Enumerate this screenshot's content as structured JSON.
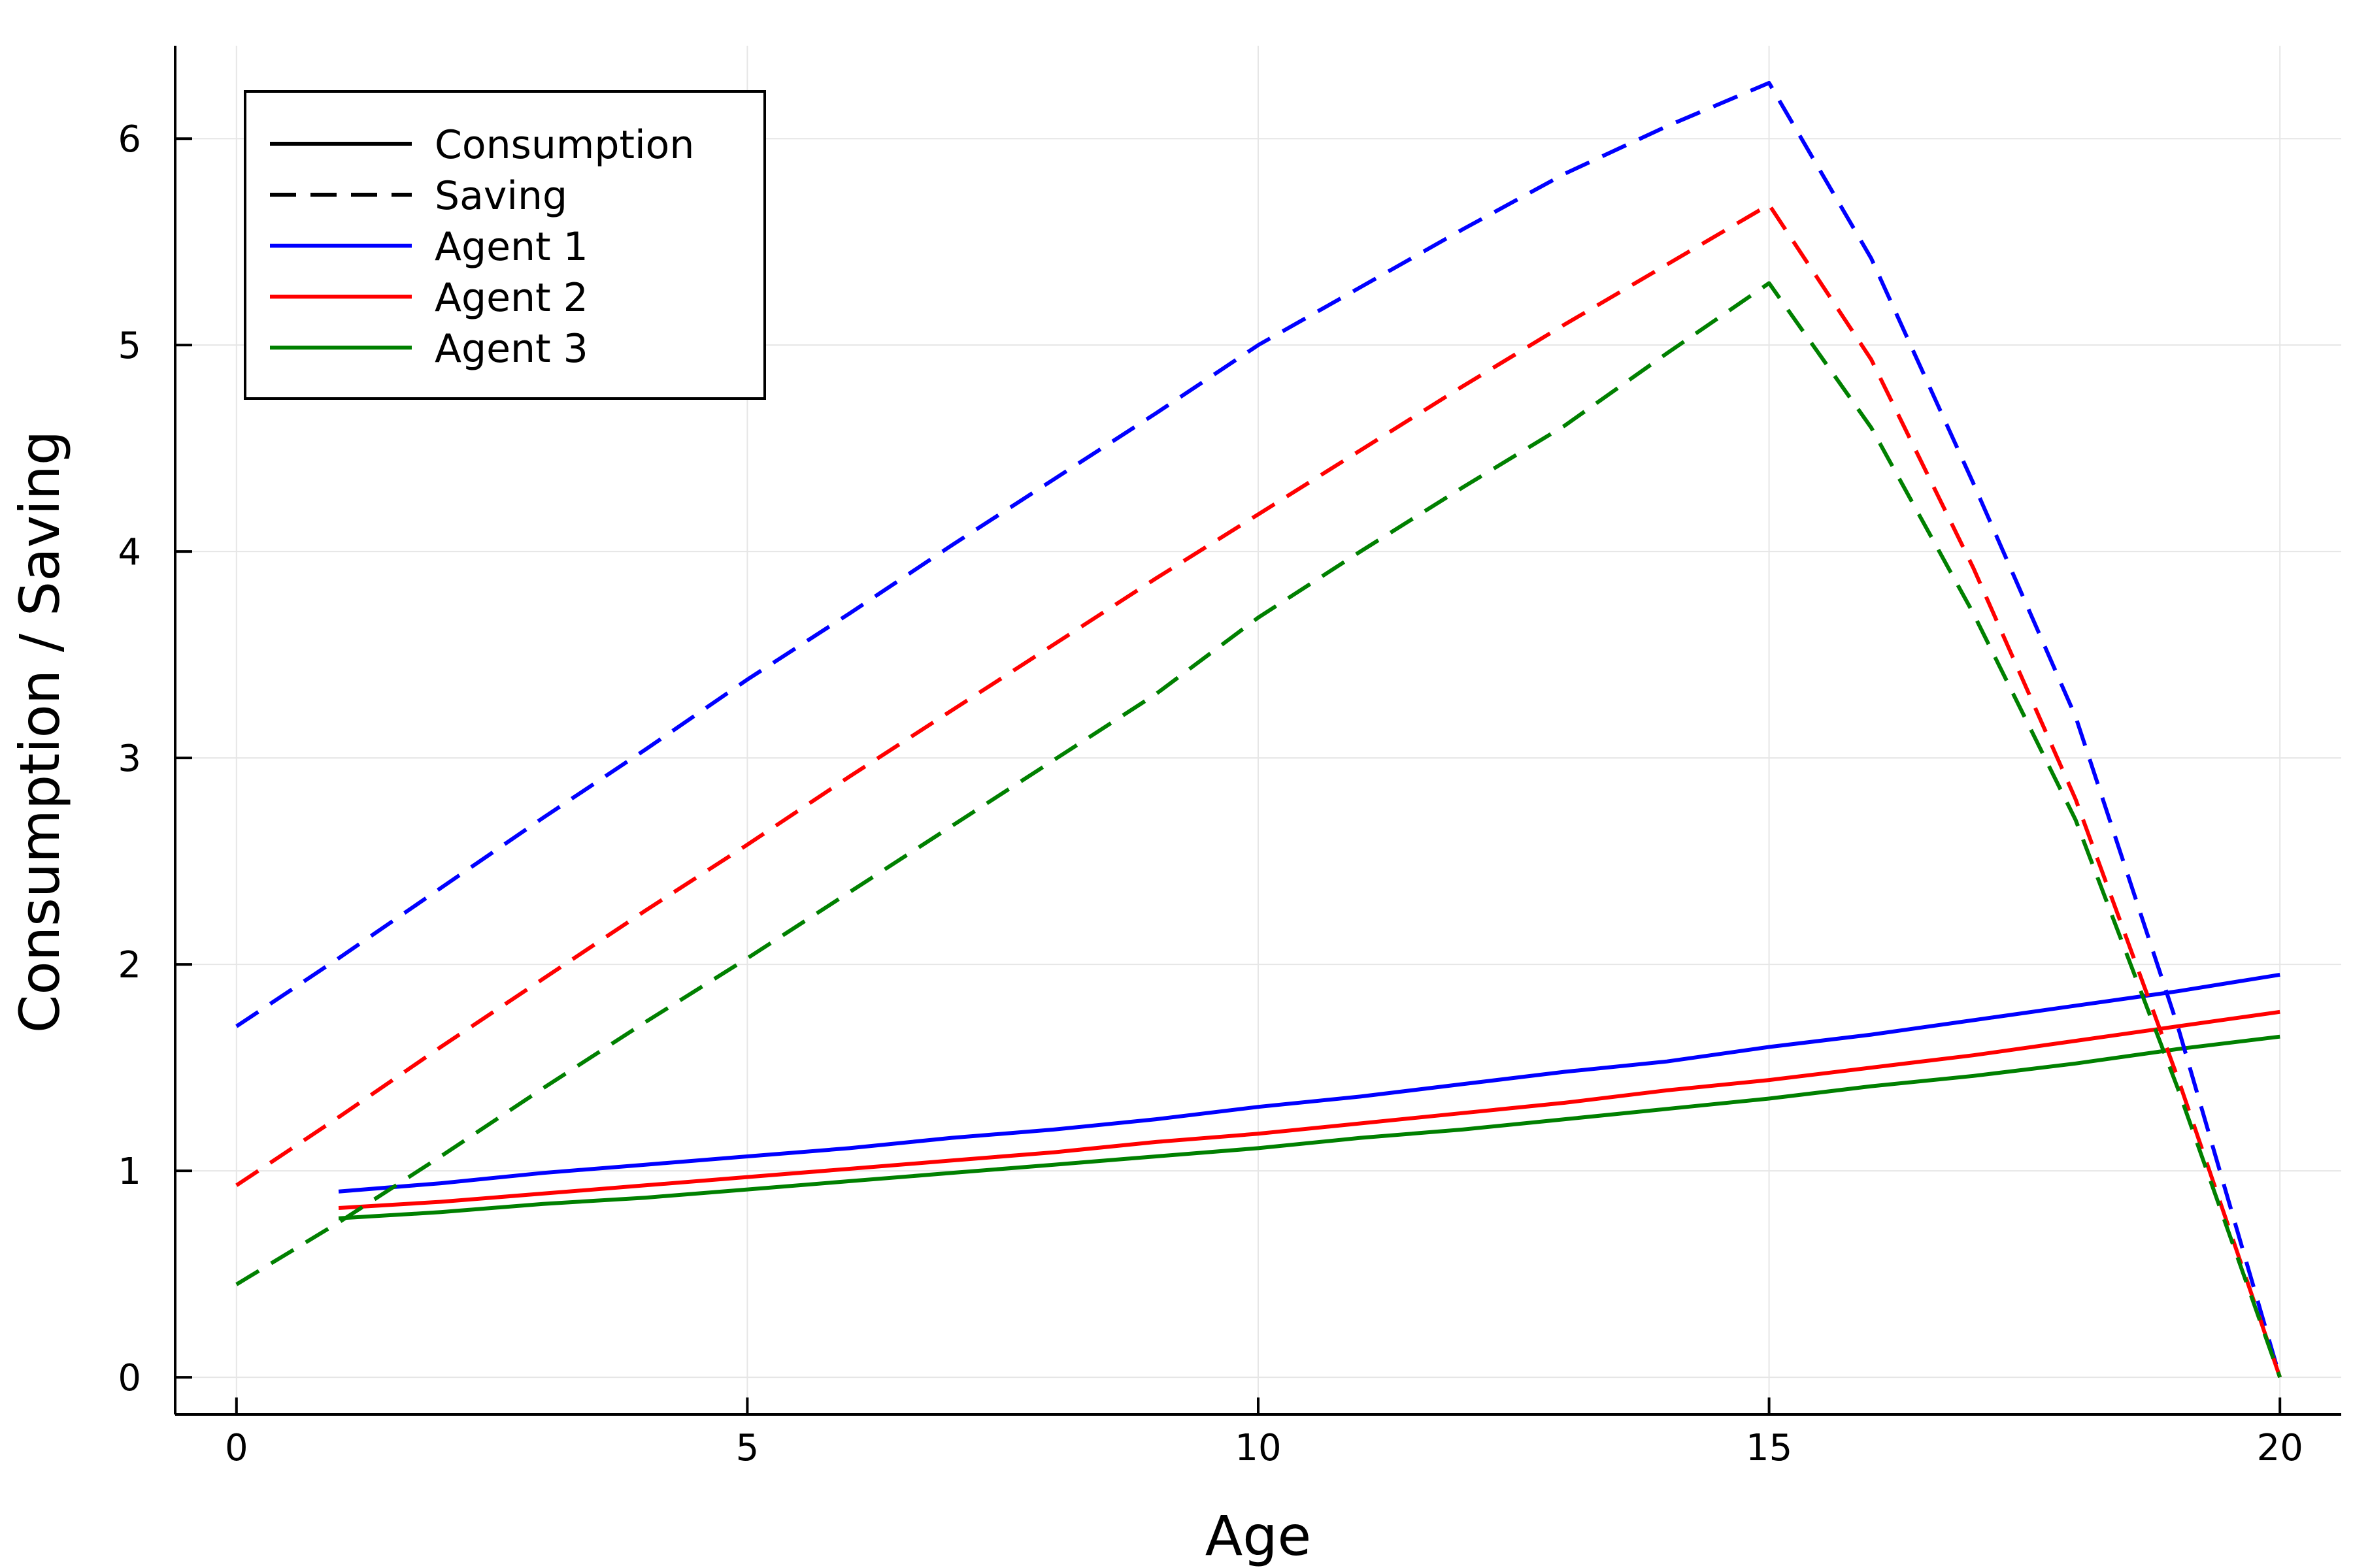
{
  "chart_data": {
    "type": "line",
    "xlabel": "Age",
    "ylabel": "Consumption / Saving",
    "xlim": [
      -0.6,
      20.6
    ],
    "ylim": [
      -0.18,
      6.45
    ],
    "x_ticks": [
      0,
      5,
      10,
      15,
      20
    ],
    "y_ticks": [
      0,
      1,
      2,
      3,
      4,
      5,
      6
    ],
    "grid": true,
    "legend_position": "top-left",
    "legend": [
      {
        "label": "Consumption",
        "style": "solid",
        "color": "#000000"
      },
      {
        "label": "Saving",
        "style": "dashed",
        "color": "#000000"
      },
      {
        "label": "Agent 1",
        "style": "solid",
        "color": "#0000ff"
      },
      {
        "label": "Agent 2",
        "style": "solid",
        "color": "#ff0000"
      },
      {
        "label": "Agent 3",
        "style": "solid",
        "color": "#008000"
      }
    ],
    "series": [
      {
        "agent": "Agent 1",
        "kind": "Consumption",
        "color": "#0000ff",
        "style": "solid",
        "x": [
          1,
          2,
          3,
          4,
          5,
          6,
          7,
          8,
          9,
          10,
          11,
          12,
          13,
          14,
          15,
          16,
          17,
          18,
          19,
          20
        ],
        "y": [
          0.9,
          0.94,
          0.99,
          1.03,
          1.07,
          1.11,
          1.16,
          1.2,
          1.25,
          1.31,
          1.36,
          1.42,
          1.48,
          1.53,
          1.6,
          1.66,
          1.73,
          1.8,
          1.87,
          1.95
        ]
      },
      {
        "agent": "Agent 2",
        "kind": "Consumption",
        "color": "#ff0000",
        "style": "solid",
        "x": [
          1,
          2,
          3,
          4,
          5,
          6,
          7,
          8,
          9,
          10,
          11,
          12,
          13,
          14,
          15,
          16,
          17,
          18,
          19,
          20
        ],
        "y": [
          0.82,
          0.85,
          0.89,
          0.93,
          0.97,
          1.01,
          1.05,
          1.09,
          1.14,
          1.18,
          1.23,
          1.28,
          1.33,
          1.39,
          1.44,
          1.5,
          1.56,
          1.63,
          1.7,
          1.77
        ]
      },
      {
        "agent": "Agent 3",
        "kind": "Consumption",
        "color": "#008000",
        "style": "solid",
        "x": [
          1,
          2,
          3,
          4,
          5,
          6,
          7,
          8,
          9,
          10,
          11,
          12,
          13,
          14,
          15,
          16,
          17,
          18,
          19,
          20
        ],
        "y": [
          0.77,
          0.8,
          0.84,
          0.87,
          0.91,
          0.95,
          0.99,
          1.03,
          1.07,
          1.11,
          1.16,
          1.2,
          1.25,
          1.3,
          1.35,
          1.41,
          1.46,
          1.52,
          1.59,
          1.65
        ]
      },
      {
        "agent": "Agent 1",
        "kind": "Saving",
        "color": "#0000ff",
        "style": "dashed",
        "x": [
          0,
          1,
          2,
          3,
          4,
          5,
          6,
          7,
          8,
          9,
          10,
          11,
          12,
          13,
          14,
          15,
          16,
          17,
          18,
          19,
          20
        ],
        "y": [
          1.7,
          2.03,
          2.37,
          2.71,
          3.04,
          3.38,
          3.7,
          4.03,
          4.35,
          4.67,
          5.0,
          5.28,
          5.56,
          5.83,
          6.06,
          6.27,
          5.42,
          4.33,
          3.2,
          1.7,
          0.0
        ]
      },
      {
        "agent": "Agent 2",
        "kind": "Saving",
        "color": "#ff0000",
        "style": "dashed",
        "x": [
          0,
          1,
          2,
          3,
          4,
          5,
          6,
          7,
          8,
          9,
          10,
          11,
          12,
          13,
          14,
          15,
          16,
          17,
          18,
          19,
          20
        ],
        "y": [
          0.93,
          1.26,
          1.6,
          1.93,
          2.26,
          2.58,
          2.91,
          3.23,
          3.55,
          3.87,
          4.18,
          4.49,
          4.8,
          5.1,
          5.39,
          5.68,
          4.93,
          3.92,
          2.8,
          1.45,
          0.0
        ]
      },
      {
        "agent": "Agent 3",
        "kind": "Saving",
        "color": "#008000",
        "style": "dashed",
        "x": [
          0,
          1,
          2,
          3,
          4,
          5,
          6,
          7,
          8,
          9,
          10,
          11,
          12,
          13,
          14,
          15,
          16,
          17,
          18,
          19,
          20
        ],
        "y": [
          0.45,
          0.75,
          1.07,
          1.4,
          1.72,
          2.03,
          2.35,
          2.67,
          2.99,
          3.31,
          3.68,
          4.0,
          4.31,
          4.61,
          4.96,
          5.3,
          4.6,
          3.7,
          2.7,
          1.4,
          0.0
        ]
      }
    ]
  }
}
